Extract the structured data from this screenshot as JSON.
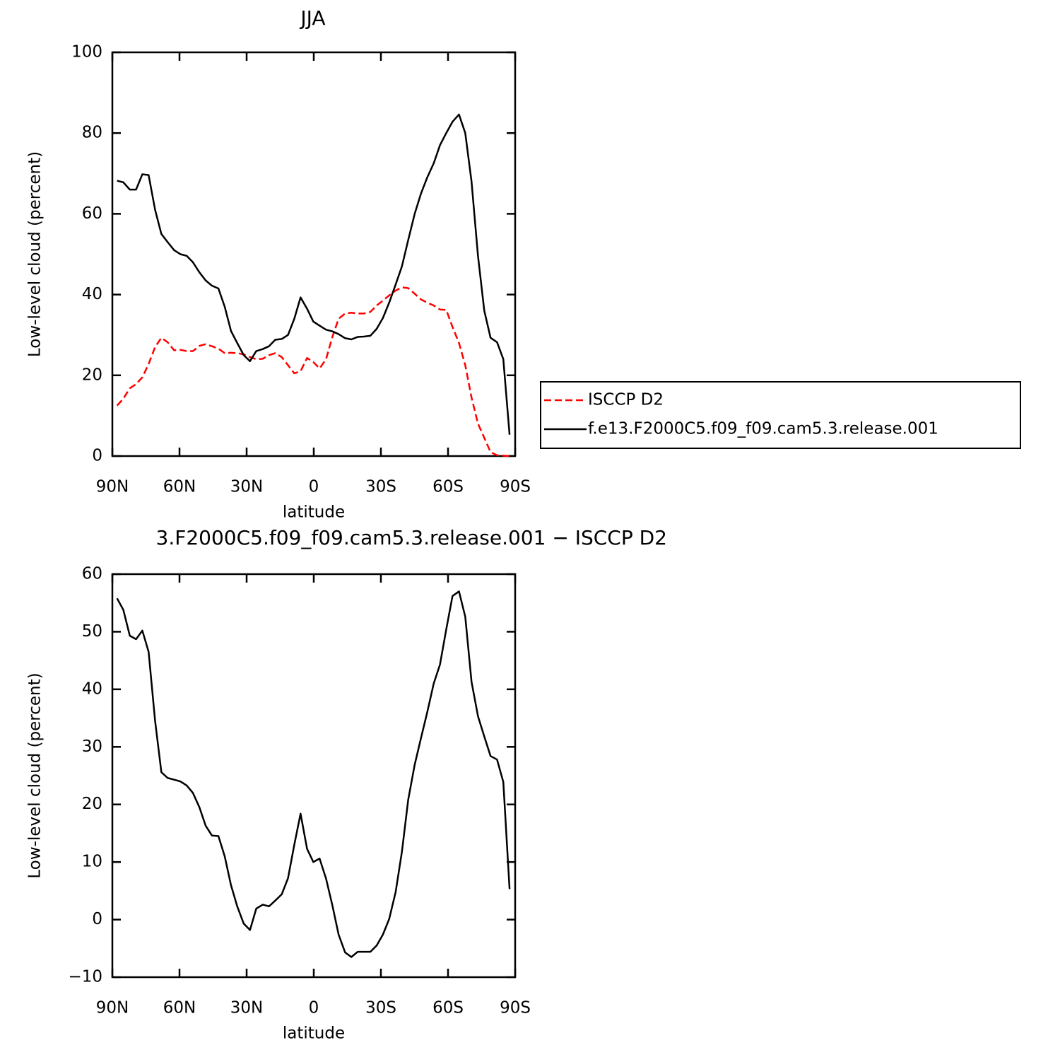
{
  "chart_data": [
    {
      "type": "line",
      "title": "JJA",
      "xlabel": "latitude",
      "ylabel": "Low-level cloud (percent)",
      "x": [
        87.9,
        85.1,
        82.2,
        79.4,
        76.6,
        73.8,
        70.9,
        68.1,
        65.3,
        62.4,
        59.6,
        56.8,
        54.0,
        51.1,
        48.3,
        45.5,
        42.6,
        39.8,
        37.0,
        34.2,
        31.3,
        28.5,
        25.7,
        22.8,
        20.0,
        17.2,
        14.3,
        11.5,
        8.7,
        5.9,
        3.0,
        0.2,
        -2.6,
        -5.5,
        -8.3,
        -11.1,
        -14.0,
        -16.8,
        -19.6,
        -22.4,
        -25.3,
        -28.1,
        -30.9,
        -33.7,
        -36.6,
        -39.4,
        -42.2,
        -45.1,
        -47.9,
        -50.7,
        -53.6,
        -56.4,
        -59.2,
        -62.0,
        -64.9,
        -67.7,
        -70.5,
        -73.4,
        -76.2,
        -79.0,
        -81.9,
        -84.7,
        -87.5
      ],
      "series": [
        {
          "name": "ISCCP D2",
          "color": "#ff0000",
          "dashed": true,
          "values": [
            12.5,
            14.2,
            16.8,
            17.8,
            19.5,
            22.8,
            27,
            29.3,
            28.2,
            26.2,
            26.3,
            26,
            26,
            27.3,
            27.7,
            27.2,
            26.6,
            25.5,
            25.6,
            25.5,
            25.2,
            24.5,
            24,
            24.1,
            25,
            25.5,
            24.5,
            22.5,
            20.5,
            21,
            24.3,
            23.3,
            21.7,
            24,
            29.5,
            34,
            35.3,
            35.5,
            35.3,
            35.3,
            35.7,
            37.3,
            38.5,
            39.8,
            41,
            41.8,
            41.6,
            40.2,
            38.8,
            38,
            37.3,
            36.3,
            36.2,
            32,
            28,
            22.5,
            14.5,
            8,
            4.5,
            1,
            0.2,
            0.1,
            0
          ]
        },
        {
          "name": "f.e13.F2000C5.f09_f09.cam5.3.release.001",
          "color": "#000000",
          "dashed": false,
          "values": [
            68.2,
            67.8,
            66,
            66,
            69.8,
            69.6,
            61,
            55,
            53,
            51,
            50,
            49.6,
            48,
            45.5,
            43.5,
            42.2,
            41.5,
            37,
            31,
            28,
            25,
            23.5,
            26,
            26.5,
            27.2,
            28.8,
            29,
            30,
            34,
            39.3,
            36.5,
            33.3,
            32.3,
            31.3,
            30.9,
            30.2,
            29.2,
            28.9,
            29.5,
            29.6,
            29.8,
            31.5,
            34.2,
            38,
            42.5,
            47,
            53.5,
            60,
            65,
            69,
            72.5,
            77,
            80,
            82.8,
            84.6,
            80,
            68,
            49.5,
            36,
            29.3,
            28.2,
            24,
            5.3
          ]
        }
      ],
      "xlim": [
        90,
        -90
      ],
      "xticks": [
        {
          "value": 90,
          "label": "90N"
        },
        {
          "value": 60,
          "label": "60N"
        },
        {
          "value": 30,
          "label": "30N"
        },
        0,
        {
          "value": -30,
          "label": "30S"
        },
        {
          "value": -60,
          "label": "60S"
        },
        {
          "value": -90,
          "label": "90S"
        }
      ],
      "ylim": [
        0,
        100
      ],
      "yticks": [
        0,
        20,
        40,
        60,
        80,
        100
      ],
      "legend": "right"
    },
    {
      "type": "line",
      "title": "3.F2000C5.f09_f09.cam5.3.release.001 − ISCCP D2",
      "xlabel": "latitude",
      "ylabel": "Low-level cloud (percent)",
      "x": [
        87.9,
        85.1,
        82.2,
        79.4,
        76.6,
        73.8,
        70.9,
        68.1,
        65.3,
        62.4,
        59.6,
        56.8,
        54.0,
        51.1,
        48.3,
        45.5,
        42.6,
        39.8,
        37.0,
        34.2,
        31.3,
        28.5,
        25.7,
        22.8,
        20.0,
        17.2,
        14.3,
        11.5,
        8.7,
        5.9,
        3.0,
        0.2,
        -2.6,
        -5.5,
        -8.3,
        -11.1,
        -14.0,
        -16.8,
        -19.6,
        -22.4,
        -25.3,
        -28.1,
        -30.9,
        -33.7,
        -36.6,
        -39.4,
        -42.2,
        -45.1,
        -47.9,
        -50.7,
        -53.6,
        -56.4,
        -59.2,
        -62.0,
        -64.9,
        -67.7,
        -70.5,
        -73.4,
        -76.2,
        -79.0,
        -81.9,
        -84.7,
        -87.5
      ],
      "series": [
        {
          "color": "#000000",
          "dashed": false,
          "values": [
            55.8,
            53.8,
            49.3,
            48.7,
            50.2,
            46.5,
            34.5,
            25.6,
            24.6,
            24.3,
            24,
            23.3,
            22,
            19.5,
            16.3,
            14.6,
            14.5,
            11,
            6,
            2.3,
            -0.7,
            -1.8,
            1.9,
            2.6,
            2.3,
            3.3,
            4.4,
            7.2,
            13,
            18.4,
            12.3,
            10,
            10.6,
            7.1,
            2.5,
            -2.6,
            -5.7,
            -6.5,
            -5.6,
            -5.6,
            -5.6,
            -4.5,
            -2.6,
            0.1,
            4.8,
            11.8,
            20.8,
            26.9,
            31.5,
            36,
            41,
            44.3,
            50.4,
            56.2,
            57,
            52.6,
            41.3,
            35.3,
            31.8,
            28.4,
            27.8,
            23.9,
            5.3
          ]
        }
      ],
      "xlim": [
        90,
        -90
      ],
      "xticks": [
        {
          "value": 90,
          "label": "90N"
        },
        {
          "value": 60,
          "label": "60N"
        },
        {
          "value": 30,
          "label": "30N"
        },
        0,
        {
          "value": -30,
          "label": "30S"
        },
        {
          "value": -60,
          "label": "60S"
        },
        {
          "value": -90,
          "label": "90S"
        }
      ],
      "ylim": [
        -10,
        60
      ],
      "yticks": [
        {
          "value": -10,
          "label": "−10"
        },
        0,
        10,
        20,
        30,
        40,
        50,
        60
      ]
    }
  ]
}
